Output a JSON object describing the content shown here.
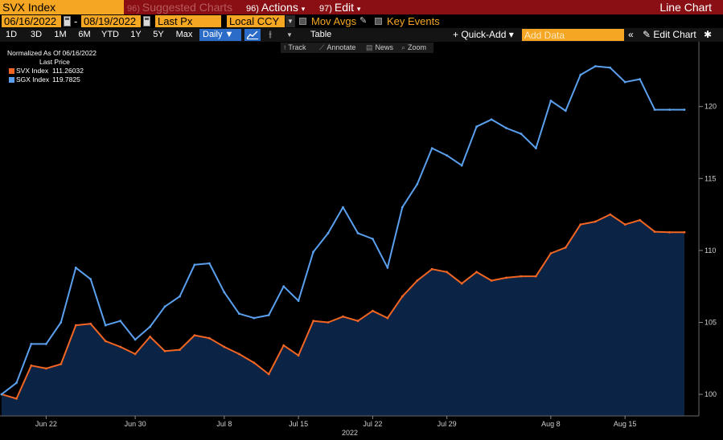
{
  "titlebar": {
    "ticker": "SVX Index",
    "suggested": {
      "num": "96)",
      "label": "Suggested Charts"
    },
    "actions": {
      "num": "96)",
      "label": "Actions",
      "arrow": "▾"
    },
    "edit": {
      "num": "97)",
      "label": "Edit",
      "arrow": "▾"
    },
    "chart_type": "Line Chart"
  },
  "params": {
    "date_from": "06/16/2022",
    "date_sep": "-",
    "date_to": "08/19/2022",
    "price_field": "Last Px",
    "currency": "Local CCY",
    "mov_avgs": "Mov Avgs",
    "key_events": "Key Events"
  },
  "toolbar": {
    "ranges": [
      "1D",
      "3D",
      "1M",
      "6M",
      "YTD",
      "1Y",
      "5Y",
      "Max"
    ],
    "frequency": "Daily ▼",
    "table": "Table",
    "quick_add": "+ Quick-Add ▾",
    "add_data_placeholder": "Add Data",
    "collapse": "«",
    "edit_chart": "✎ Edit Chart",
    "gear": "✱"
  },
  "subtoolbar": {
    "track": "Track",
    "annotate": "Annotate",
    "news": "News",
    "zoom": "Zoom"
  },
  "legend": {
    "title": "Normalized As Of 06/16/2022",
    "subtitle": "Last Price",
    "items": [
      {
        "name": "SVX Index",
        "value": "111.26032",
        "color": "#f26522"
      },
      {
        "name": "SGX Index",
        "value": "119.7825",
        "color": "#5aa0ee"
      }
    ]
  },
  "colors": {
    "svx_line": "#f26522",
    "sgx_line": "#5aa0ee",
    "area_fill": "#0b2345",
    "accent_orange": "#f5a623",
    "titlebar_bg": "#8a0f14"
  },
  "chart_data": {
    "type": "line",
    "title": "",
    "xlabel": "2022",
    "ylabel": "",
    "ylim": [
      98.5,
      124.5
    ],
    "yticks": [
      100,
      105,
      110,
      115,
      120
    ],
    "x_tick_labels": [
      "Jun 22",
      "Jun 30",
      "Jul 8",
      "Jul 15",
      "Jul 22",
      "Jul 29",
      "Aug 8",
      "Aug 15"
    ],
    "x_tick_index": [
      3,
      9,
      15,
      20,
      25,
      30,
      37,
      42
    ],
    "x": [
      "2022-06-16",
      "2022-06-17",
      "2022-06-20",
      "2022-06-21",
      "2022-06-22",
      "2022-06-23",
      "2022-06-24",
      "2022-06-27",
      "2022-06-28",
      "2022-06-29",
      "2022-06-30",
      "2022-07-01",
      "2022-07-04",
      "2022-07-05",
      "2022-07-06",
      "2022-07-07",
      "2022-07-08",
      "2022-07-11",
      "2022-07-12",
      "2022-07-13",
      "2022-07-14",
      "2022-07-15",
      "2022-07-18",
      "2022-07-19",
      "2022-07-20",
      "2022-07-21",
      "2022-07-22",
      "2022-07-25",
      "2022-07-26",
      "2022-07-27",
      "2022-07-28",
      "2022-07-29",
      "2022-08-01",
      "2022-08-02",
      "2022-08-03",
      "2022-08-04",
      "2022-08-05",
      "2022-08-08",
      "2022-08-09",
      "2022-08-10",
      "2022-08-11",
      "2022-08-12",
      "2022-08-15",
      "2022-08-16",
      "2022-08-17",
      "2022-08-18",
      "2022-08-19"
    ],
    "series": [
      {
        "name": "SVX Index",
        "values": [
          100.0,
          99.7,
          102.0,
          101.8,
          102.1,
          104.8,
          104.9,
          103.7,
          103.3,
          102.8,
          104.0,
          103.0,
          103.1,
          104.1,
          103.9,
          103.3,
          102.8,
          102.2,
          101.4,
          103.4,
          102.7,
          105.1,
          105.0,
          105.4,
          105.1,
          105.8,
          105.3,
          106.8,
          107.9,
          108.7,
          108.5,
          107.7,
          108.5,
          107.9,
          108.1,
          108.2,
          108.2,
          109.8,
          110.2,
          111.8,
          112.0,
          112.5,
          111.8,
          112.1,
          111.3,
          111.26,
          111.26
        ]
      },
      {
        "name": "SGX Index",
        "values": [
          100.0,
          100.8,
          103.5,
          103.5,
          105.0,
          108.8,
          108.0,
          104.8,
          105.1,
          103.8,
          104.7,
          106.1,
          106.8,
          109.0,
          109.1,
          107.1,
          105.6,
          105.3,
          105.5,
          107.5,
          106.5,
          109.9,
          111.2,
          113.0,
          111.2,
          110.8,
          108.8,
          113.0,
          114.6,
          117.1,
          116.6,
          115.9,
          118.6,
          119.1,
          118.5,
          118.1,
          117.1,
          120.4,
          119.7,
          122.2,
          122.8,
          122.7,
          121.7,
          121.9,
          119.78,
          119.78,
          119.78
        ]
      }
    ],
    "fill_under": "SVX Index",
    "grid": false,
    "legend_position": "top-left"
  }
}
